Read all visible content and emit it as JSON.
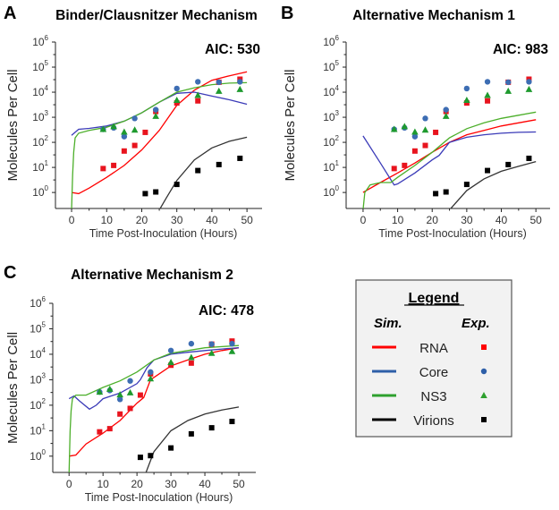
{
  "legend": {
    "title": "Legend",
    "sim_header": "Sim.",
    "exp_header": "Exp.",
    "items": [
      {
        "label": "RNA",
        "color": "#ff0000",
        "marker": "square"
      },
      {
        "label": "Core",
        "color": "#2e5fa8",
        "marker": "circle"
      },
      {
        "label": "NS3",
        "color": "#2ea02e",
        "marker": "triangle"
      },
      {
        "label": "Virions",
        "color": "#000000",
        "marker": "square"
      }
    ]
  },
  "colors": {
    "RNA": "#ff0000",
    "Core": "#3b3bb8",
    "NS3": "#4caf2a",
    "Virions": "#333333",
    "RNA_exp": "#e8141e",
    "Core_exp": "#3d6db3",
    "NS3_exp": "#1e9a2e",
    "Virions_exp": "#000000"
  },
  "chart_data": [
    {
      "type": "line",
      "panel_letter": "A",
      "title": "Binder/Clausnitzer Mechanism",
      "annotation": "AIC: 530",
      "xlabel": "Time Post-Inoculation (Hours)",
      "ylabel": "Molecules Per Cell",
      "xlim": [
        -4.6,
        54.3
      ],
      "ylim": [
        0.23,
        1000000
      ],
      "yscale": "log",
      "x_ticks": [
        0,
        10,
        20,
        30,
        40,
        50
      ],
      "y_tick_base": "10",
      "y_tick_exponents": [
        0,
        1,
        2,
        3,
        4,
        5,
        6
      ],
      "series": [
        {
          "name": "RNA",
          "kind": "sim",
          "x": [
            0,
            2,
            5,
            10,
            15,
            20,
            25,
            30,
            35,
            40,
            45,
            50
          ],
          "y": [
            1,
            0.9,
            1.5,
            4,
            12,
            50,
            300,
            3000,
            12000,
            30000,
            45000,
            65000
          ]
        },
        {
          "name": "Core",
          "kind": "sim",
          "x": [
            0,
            2,
            5,
            10,
            15,
            20,
            25,
            30,
            35,
            40,
            45,
            50
          ],
          "y": [
            190,
            330,
            360,
            450,
            700,
            1500,
            4000,
            9000,
            10000,
            7000,
            5000,
            3300
          ]
        },
        {
          "name": "NS3",
          "kind": "sim",
          "x": [
            0,
            0.3,
            0.6,
            1,
            2,
            5,
            10,
            15,
            20,
            25,
            30,
            35,
            40,
            45,
            50
          ],
          "y": [
            0.2,
            5,
            40,
            150,
            230,
            300,
            400,
            700,
            1500,
            4000,
            10000,
            15000,
            20000,
            23000,
            24000
          ]
        },
        {
          "name": "Virions",
          "kind": "sim",
          "x": [
            25,
            27,
            30,
            35,
            40,
            45,
            50
          ],
          "y": [
            0.2,
            0.6,
            3,
            20,
            60,
            110,
            160
          ]
        }
      ]
    },
    {
      "type": "line",
      "panel_letter": "B",
      "title": "Alternative Mechanism 1",
      "annotation": "AIC: 983",
      "xlabel": "Time Post-Inoculation (Hours)",
      "ylabel": "Molecules Per Cell",
      "xlim": [
        -4.9,
        54.1
      ],
      "ylim": [
        0.23,
        1000000
      ],
      "yscale": "log",
      "x_ticks": [
        0,
        10,
        20,
        30,
        40,
        50
      ],
      "y_tick_base": "10",
      "y_tick_exponents": [
        0,
        1,
        2,
        3,
        4,
        5,
        6
      ],
      "series": [
        {
          "name": "RNA",
          "kind": "sim",
          "x": [
            0,
            5,
            10,
            15,
            20,
            25,
            30,
            35,
            40,
            45,
            50
          ],
          "y": [
            1,
            2.5,
            6,
            15,
            40,
            100,
            200,
            300,
            450,
            600,
            800
          ]
        },
        {
          "name": "Core",
          "kind": "sim",
          "x": [
            0,
            5,
            9,
            10,
            15,
            20,
            22,
            25,
            30,
            35,
            40,
            45,
            50
          ],
          "y": [
            180,
            15,
            2,
            2.2,
            6,
            20,
            30,
            100,
            160,
            200,
            230,
            250,
            260
          ]
        },
        {
          "name": "NS3",
          "kind": "sim",
          "x": [
            0,
            0.5,
            2,
            5,
            8,
            10,
            15,
            20,
            25,
            30,
            35,
            40,
            45,
            50
          ],
          "y": [
            0.2,
            1,
            2,
            2.5,
            2.5,
            4,
            12,
            40,
            150,
            350,
            600,
            900,
            1200,
            1600
          ]
        },
        {
          "name": "Virions",
          "kind": "sim",
          "x": [
            25,
            30,
            35,
            40,
            45,
            50
          ],
          "y": [
            0.2,
            1.2,
            3.5,
            7,
            11,
            17
          ]
        }
      ]
    },
    {
      "type": "line",
      "panel_letter": "C",
      "title": "Alternative Mechanism 2",
      "annotation": "AIC: 478",
      "xlabel": "Time Post-Inoculation (Hours)",
      "ylabel": "Molecules Per Cell",
      "xlim": [
        -4.8,
        55.0
      ],
      "ylim": [
        0.23,
        1000000
      ],
      "yscale": "log",
      "x_ticks": [
        0,
        10,
        20,
        30,
        40,
        50
      ],
      "y_tick_base": "10",
      "y_tick_exponents": [
        0,
        1,
        2,
        3,
        4,
        5,
        6
      ],
      "series": [
        {
          "name": "RNA",
          "kind": "sim",
          "x": [
            0,
            2,
            5,
            10,
            15,
            20,
            22,
            24,
            30,
            35,
            40,
            45,
            50
          ],
          "y": [
            1,
            1.1,
            3,
            8,
            25,
            120,
            200,
            1000,
            3500,
            6000,
            10000,
            14000,
            18000
          ]
        },
        {
          "name": "Core",
          "kind": "sim",
          "x": [
            0,
            1.5,
            3,
            6,
            8,
            10,
            15,
            20,
            21,
            23,
            25,
            30,
            35,
            40,
            45,
            50
          ],
          "y": [
            180,
            230,
            150,
            70,
            100,
            180,
            300,
            700,
            1000,
            3000,
            6000,
            10000,
            12000,
            14000,
            16000,
            18000
          ]
        },
        {
          "name": "NS3",
          "kind": "sim",
          "x": [
            0,
            0.3,
            0.6,
            1,
            2,
            5,
            10,
            15,
            20,
            25,
            30,
            35,
            40,
            45,
            50
          ],
          "y": [
            0.2,
            10,
            60,
            180,
            250,
            250,
            500,
            900,
            2000,
            6000,
            11000,
            14000,
            18000,
            20000,
            22000
          ]
        },
        {
          "name": "Virions",
          "kind": "sim",
          "x": [
            22.5,
            25,
            30,
            35,
            40,
            45,
            50
          ],
          "y": [
            0.2,
            1.5,
            10,
            25,
            45,
            65,
            85
          ]
        }
      ]
    }
  ],
  "experimental_data": [
    {
      "name": "RNA",
      "x": [
        9,
        12,
        15,
        18,
        21,
        24,
        30,
        36,
        42,
        48
      ],
      "y": [
        9,
        12,
        45,
        75,
        250,
        1700,
        3700,
        4500,
        25000,
        33000
      ]
    },
    {
      "name": "Core",
      "x": [
        9,
        12,
        15,
        18,
        24,
        30,
        36,
        42,
        48
      ],
      "y": [
        330,
        380,
        170,
        900,
        2000,
        14000,
        26000,
        25000,
        26000
      ]
    },
    {
      "name": "NS3",
      "x": [
        9,
        12,
        15,
        18,
        24,
        30,
        36,
        42,
        48
      ],
      "y": [
        330,
        430,
        260,
        310,
        1100,
        4800,
        7500,
        11000,
        13000
      ]
    },
    {
      "name": "Virions",
      "x": [
        21,
        24,
        30,
        36,
        42,
        48
      ],
      "y": [
        0.9,
        1.05,
        2.1,
        7.5,
        13,
        23
      ]
    }
  ]
}
